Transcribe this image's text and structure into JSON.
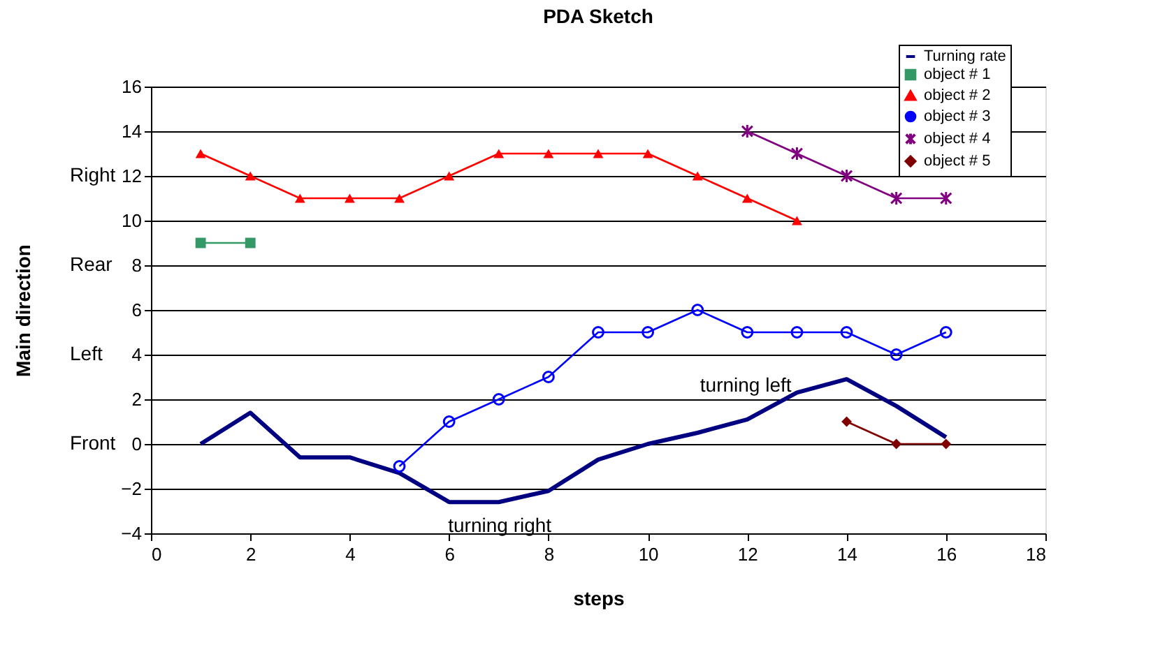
{
  "chart_data": {
    "type": "line",
    "title": "PDA Sketch",
    "xlabel": "steps",
    "ylabel": "Main direction",
    "x": [
      1,
      2,
      3,
      4,
      5,
      6,
      7,
      8,
      9,
      10,
      11,
      12,
      13,
      14,
      15,
      16
    ],
    "series": [
      {
        "name": "Turning rate",
        "color": "#000080",
        "marker": "none",
        "values": [
          0,
          1.4,
          -0.6,
          -0.6,
          -1.3,
          -2.6,
          -2.6,
          -2.1,
          -0.7,
          0,
          0.5,
          1.1,
          2.3,
          2.9,
          1.7,
          0.3
        ]
      },
      {
        "name": "object # 1",
        "color": "#339966",
        "marker": "square",
        "values": [
          9,
          9,
          null,
          null,
          null,
          null,
          null,
          null,
          null,
          null,
          null,
          null,
          null,
          null,
          null,
          null
        ]
      },
      {
        "name": "object # 2",
        "color": "#ff0000",
        "marker": "triangle",
        "values": [
          13,
          12,
          11,
          11,
          11,
          12,
          13,
          13,
          13,
          13,
          12,
          11,
          10,
          null,
          null,
          null
        ]
      },
      {
        "name": "object # 3",
        "color": "#0000ff",
        "marker": "circle",
        "values": [
          null,
          null,
          null,
          null,
          -1,
          1,
          2,
          3,
          5,
          5,
          6,
          5,
          5,
          5,
          4,
          5
        ]
      },
      {
        "name": "object # 4",
        "color": "#800080",
        "marker": "cross",
        "values": [
          null,
          null,
          null,
          null,
          null,
          null,
          null,
          null,
          null,
          null,
          null,
          14,
          13,
          12,
          11,
          11
        ]
      },
      {
        "name": "object # 5",
        "color": "#800000",
        "marker": "diamond",
        "values": [
          null,
          null,
          null,
          null,
          null,
          null,
          null,
          null,
          null,
          null,
          null,
          null,
          null,
          1,
          0,
          0
        ]
      }
    ],
    "xlim": [
      0,
      18
    ],
    "xticks": [
      0,
      2,
      4,
      6,
      8,
      10,
      12,
      14,
      16,
      18
    ],
    "ylim": [
      -4,
      16
    ],
    "yticks": [
      -4,
      -2,
      0,
      2,
      4,
      6,
      8,
      10,
      12,
      14,
      16
    ],
    "grid": "y",
    "legend": "top right",
    "annotations": [
      "Right",
      "Rear",
      "Left",
      "Front",
      "turning right",
      "turning left"
    ]
  }
}
